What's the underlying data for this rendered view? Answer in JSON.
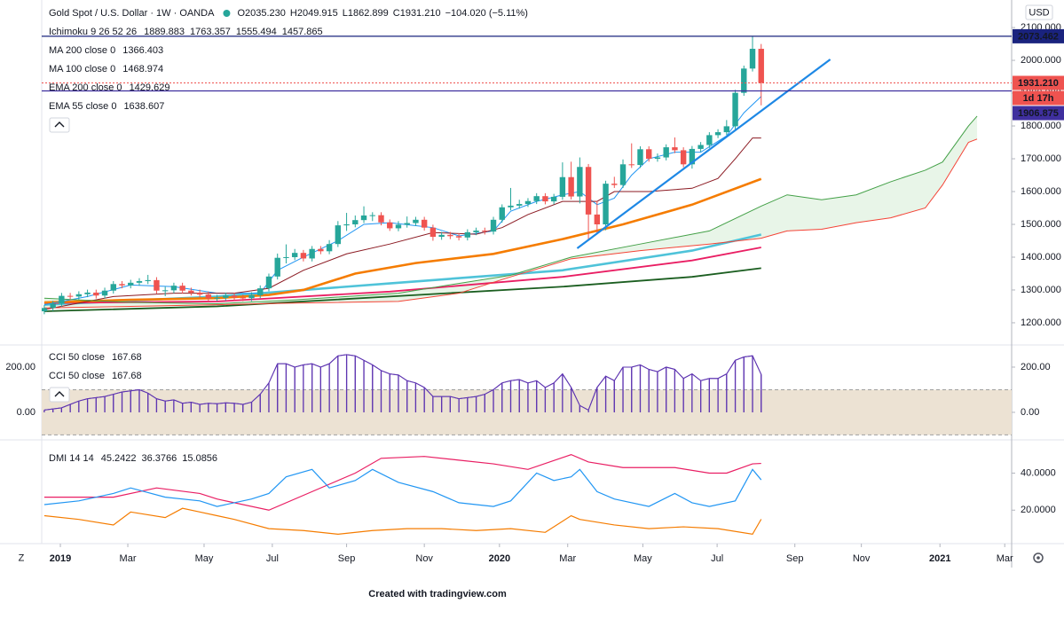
{
  "chart_data": [
    {
      "type": "candlestick",
      "title": "Gold Spot / U.S. Dollar · 1W · OANDA",
      "ohlc_labels": [
        "O",
        "H",
        "L",
        "C"
      ],
      "ohlc_text": [
        "2035.230",
        "2049.915",
        "1862.899",
        "1931.210"
      ],
      "change": "−104.020 (−5.11%)",
      "currency": "USD",
      "up_color": "#26a69a",
      "down_color": "#ef5350",
      "open": [
        1235,
        1245,
        1258,
        1282,
        1280,
        1287,
        1292,
        1283,
        1298,
        1318,
        1314,
        1322,
        1327,
        1330,
        1298,
        1299,
        1313,
        1298,
        1292,
        1286,
        1274,
        1276,
        1283,
        1277,
        1275,
        1284,
        1305,
        1341,
        1398,
        1400,
        1413,
        1396,
        1425,
        1418,
        1440,
        1497,
        1500,
        1513,
        1527,
        1528,
        1506,
        1488,
        1499,
        1504,
        1514,
        1490,
        1462,
        1468,
        1464,
        1460,
        1476,
        1481,
        1478,
        1514,
        1552,
        1557,
        1562,
        1571,
        1586,
        1570,
        1584,
        1644,
        1585,
        1675,
        1530,
        1500,
        1624,
        1620,
        1683,
        1681,
        1729,
        1700,
        1704,
        1735,
        1726,
        1683,
        1730,
        1742,
        1772,
        1781,
        1799,
        1901,
        1975,
        2035.23
      ],
      "high": [
        1254,
        1267,
        1291,
        1291,
        1296,
        1301,
        1301,
        1307,
        1327,
        1327,
        1331,
        1336,
        1346,
        1339,
        1310,
        1322,
        1322,
        1307,
        1301,
        1295,
        1285,
        1292,
        1292,
        1286,
        1293,
        1314,
        1350,
        1411,
        1439,
        1425,
        1422,
        1434,
        1434,
        1452,
        1510,
        1535,
        1527,
        1555,
        1537,
        1537,
        1515,
        1510,
        1524,
        1523,
        1523,
        1499,
        1477,
        1477,
        1473,
        1485,
        1490,
        1490,
        1523,
        1561,
        1611,
        1575,
        1580,
        1595,
        1595,
        1593,
        1689,
        1691,
        1704,
        1684,
        1572,
        1633,
        1645,
        1698,
        1747,
        1738,
        1738,
        1716,
        1744,
        1765,
        1735,
        1739,
        1751,
        1781,
        1790,
        1818,
        1910,
        1984,
        2073.462,
        2049.915
      ],
      "low": [
        1226,
        1236,
        1249,
        1271,
        1271,
        1278,
        1274,
        1274,
        1289,
        1305,
        1305,
        1313,
        1318,
        1289,
        1281,
        1290,
        1289,
        1283,
        1277,
        1266,
        1266,
        1267,
        1268,
        1266,
        1266,
        1275,
        1296,
        1332,
        1381,
        1391,
        1387,
        1387,
        1409,
        1409,
        1431,
        1480,
        1491,
        1504,
        1510,
        1497,
        1480,
        1479,
        1490,
        1495,
        1481,
        1450,
        1453,
        1455,
        1451,
        1451,
        1467,
        1469,
        1469,
        1505,
        1543,
        1548,
        1553,
        1562,
        1561,
        1561,
        1575,
        1576,
        1564,
        1451,
        1471,
        1482,
        1611,
        1611,
        1672,
        1672,
        1691,
        1691,
        1695,
        1717,
        1674,
        1670,
        1721,
        1733,
        1763,
        1772,
        1790,
        1892,
        1966,
        1862.899
      ],
      "close": [
        1245,
        1258,
        1282,
        1280,
        1287,
        1292,
        1283,
        1298,
        1318,
        1314,
        1322,
        1327,
        1330,
        1298,
        1299,
        1313,
        1298,
        1292,
        1286,
        1274,
        1276,
        1283,
        1277,
        1275,
        1284,
        1305,
        1341,
        1398,
        1400,
        1413,
        1396,
        1425,
        1418,
        1440,
        1497,
        1500,
        1513,
        1527,
        1528,
        1506,
        1488,
        1499,
        1504,
        1514,
        1490,
        1462,
        1468,
        1464,
        1460,
        1476,
        1481,
        1478,
        1514,
        1552,
        1557,
        1562,
        1571,
        1586,
        1570,
        1584,
        1644,
        1585,
        1675,
        1530,
        1500,
        1624,
        1620,
        1683,
        1681,
        1729,
        1700,
        1704,
        1735,
        1726,
        1683,
        1730,
        1742,
        1772,
        1781,
        1799,
        1901,
        1975,
        2035.23,
        1931.21
      ],
      "ichimoku": {
        "name": "Ichimoku 9 26 52 26",
        "cloud_color": "rgba(76,175,80,0.13)",
        "lines": [
          {
            "color": "#2196f3",
            "x": [
              0,
              5,
              10,
              15,
              20,
              25,
              27,
              30,
              34,
              37,
              40,
              45,
              48,
              52,
              54,
              57,
              60,
              62,
              64,
              66,
              68,
              70,
              73,
              76,
              79,
              81,
              83
            ],
            "values": [
              1255,
              1280,
              1315,
              1310,
              1290,
              1290,
              1360,
              1400,
              1450,
              1500,
              1505,
              1490,
              1465,
              1480,
              1540,
              1570,
              1590,
              1600,
              1560,
              1580,
              1650,
              1700,
              1720,
              1720,
              1770,
              1840,
              1889.883
            ]
          },
          {
            "color": "#8b1a22",
            "x": [
              0,
              8,
              15,
              22,
              26,
              30,
              35,
              40,
              45,
              50,
              53,
              56,
              60,
              64,
              66,
              70,
              75,
              78,
              80,
              82,
              83
            ],
            "values": [
              1240,
              1280,
              1290,
              1290,
              1305,
              1360,
              1410,
              1440,
              1475,
              1470,
              1490,
              1530,
              1570,
              1570,
              1600,
              1600,
              1610,
              1640,
              1700,
              1763.357,
              1763.357
            ]
          },
          {
            "color": "#43a047",
            "x": [
              0,
              10,
              20,
              29,
              41,
              48,
              54,
              61,
              69,
              77,
              83,
              86,
              90,
              94,
              98,
              102,
              104,
              107,
              108
            ],
            "values": [
              1275,
              1262,
              1258,
              1270,
              1290,
              1320,
              1345,
              1400,
              1440,
              1480,
              1555.494,
              1590,
              1575,
              1590,
              1630,
              1665,
              1690,
              1800,
              1830
            ]
          },
          {
            "color": "#f44336",
            "x": [
              0,
              10,
              20,
              29,
              41,
              48,
              54,
              61,
              69,
              77,
              83,
              86,
              90,
              94,
              98,
              102,
              104,
              107,
              108
            ],
            "values": [
              1245,
              1250,
              1255,
              1260,
              1265,
              1290,
              1340,
              1395,
              1420,
              1440,
              1457.865,
              1480,
              1485,
              1505,
              1520,
              1550,
              1620,
              1750,
              1760
            ]
          }
        ]
      },
      "series": [
        {
          "name": "MA 200 close 0",
          "color": "#1b5e20",
          "x": [
            0,
            20,
            40,
            60,
            75,
            83
          ],
          "values": [
            1235,
            1250,
            1280,
            1310,
            1340,
            1366.403
          ]
        },
        {
          "name": "MA 100 close 0",
          "color": "#4fc3d9",
          "x": [
            0,
            20,
            40,
            60,
            75,
            83
          ],
          "values": [
            1255,
            1280,
            1320,
            1360,
            1420,
            1468.974
          ]
        },
        {
          "name": "EMA 200 close 0",
          "color": "#e91e63",
          "x": [
            0,
            20,
            40,
            60,
            75,
            83
          ],
          "values": [
            1260,
            1265,
            1295,
            1340,
            1390,
            1429.629
          ]
        },
        {
          "name": "EMA 55 close 0",
          "color": "#f57c00",
          "x": [
            0,
            10,
            20,
            26,
            30,
            36,
            43,
            52,
            60,
            67,
            75,
            83
          ],
          "values": [
            1262,
            1270,
            1275,
            1285,
            1300,
            1350,
            1382,
            1410,
            1455,
            1500,
            1560,
            1638.607
          ]
        }
      ],
      "hlines": {
        "values": [
          2073.462,
          1931.21,
          1906.875
        ],
        "value_labels": [
          "2073.462",
          "1931.210",
          "1906.875"
        ],
        "colors": [
          "#1a237e",
          "#ef5350",
          "#3f2f9e"
        ]
      },
      "countdown": "1d 17h",
      "trendline": {
        "color": "#1e88e5",
        "x": [
          61.7,
          91
        ],
        "values": [
          1427,
          2003
        ]
      },
      "xlim": [
        -0.3,
        112
      ],
      "xticks": [
        {
          "value": 1.86,
          "label": "2019"
        },
        {
          "value": 9.67,
          "label": "Mar"
        },
        {
          "value": 18.5,
          "label": "May"
        },
        {
          "value": 26.4,
          "label": "Jul"
        },
        {
          "value": 35,
          "label": "Sep"
        },
        {
          "value": 44,
          "label": "Nov"
        },
        {
          "value": 52.7,
          "label": "2020"
        },
        {
          "value": 60.6,
          "label": "Mar"
        },
        {
          "value": 69.3,
          "label": "May"
        },
        {
          "value": 77.9,
          "label": "Jul"
        },
        {
          "value": 86.9,
          "label": "Sep"
        },
        {
          "value": 94.6,
          "label": "Nov"
        },
        {
          "value": 103.7,
          "label": "2021"
        },
        {
          "value": 111.2,
          "label": "Mar"
        }
      ],
      "ylim": [
        1135,
        2184
      ],
      "yticks": [
        {
          "value": 1200,
          "label": "1200.000"
        },
        {
          "value": 1300,
          "label": "1300.000"
        },
        {
          "value": 1400,
          "label": "1400.000"
        },
        {
          "value": 1500,
          "label": "1500.000"
        },
        {
          "value": 1600,
          "label": "1600.000"
        },
        {
          "value": 1700,
          "label": "1700.000"
        },
        {
          "value": 1800,
          "label": "1800.000"
        },
        {
          "value": 1900,
          "label": "1900.000"
        },
        {
          "value": 2000,
          "label": "2000.000"
        },
        {
          "value": 2100,
          "label": "2100.000"
        }
      ]
    },
    {
      "type": "bar",
      "series": [
        {
          "name": "CCI 50 close",
          "color": "#5e35b1",
          "values": [
            10,
            15,
            20,
            35,
            50,
            60,
            65,
            70,
            80,
            90,
            95,
            100,
            85,
            60,
            50,
            55,
            40,
            45,
            35,
            40,
            38,
            42,
            40,
            35,
            45,
            80,
            130,
            215,
            215,
            200,
            210,
            215,
            200,
            215,
            250,
            255,
            250,
            230,
            210,
            185,
            170,
            165,
            140,
            130,
            110,
            70,
            70,
            70,
            60,
            65,
            70,
            80,
            100,
            130,
            140,
            145,
            130,
            140,
            110,
            130,
            170,
            110,
            30,
            10,
            110,
            160,
            140,
            200,
            200,
            210,
            190,
            180,
            200,
            190,
            150,
            170,
            140,
            150,
            150,
            170,
            230,
            245,
            250,
            167.68
          ]
        },
        {
          "name": "CCI 50 close",
          "color": "#5e35b1",
          "values": [
            10,
            15,
            20,
            35,
            50,
            60,
            65,
            70,
            80,
            90,
            95,
            100,
            85,
            60,
            50,
            55,
            40,
            45,
            35,
            40,
            38,
            42,
            40,
            35,
            45,
            80,
            130,
            215,
            215,
            200,
            210,
            215,
            200,
            215,
            250,
            255,
            250,
            230,
            210,
            185,
            170,
            165,
            140,
            130,
            110,
            70,
            70,
            70,
            60,
            65,
            70,
            80,
            100,
            130,
            140,
            145,
            130,
            140,
            110,
            130,
            170,
            110,
            30,
            10,
            110,
            160,
            140,
            200,
            200,
            210,
            190,
            180,
            200,
            190,
            150,
            170,
            140,
            150,
            150,
            170,
            230,
            245,
            250,
            167.68
          ]
        }
      ],
      "band": [
        -100,
        100
      ],
      "band_color": "#ece2d3",
      "ylim": [
        -114,
        294
      ],
      "yticks": [
        {
          "value": 0,
          "label": "0.00"
        },
        {
          "value": 200,
          "label": "200.00"
        }
      ]
    },
    {
      "type": "line",
      "title": "DMI 14 14",
      "series": [
        {
          "color": "#e91e63",
          "x": [
            0,
            8,
            13,
            18,
            20,
            26,
            31,
            36,
            39,
            44,
            48,
            52,
            56,
            61,
            63,
            67,
            73,
            77,
            79,
            82,
            83
          ],
          "values": [
            27,
            27,
            32,
            29,
            26,
            20,
            30,
            40,
            48,
            49,
            47,
            45,
            42,
            50,
            46,
            43,
            43,
            40,
            40,
            45,
            45.2422
          ]
        },
        {
          "color": "#2196f3",
          "x": [
            0,
            4,
            8,
            10,
            14,
            18,
            20,
            24,
            26,
            28,
            31,
            33,
            36,
            38,
            41,
            45,
            48,
            52,
            54,
            57,
            59,
            61,
            62,
            64,
            66,
            70,
            73,
            75,
            77,
            80,
            82,
            83
          ],
          "values": [
            23,
            25,
            29,
            32,
            27,
            25,
            22,
            26,
            29,
            38,
            42,
            32,
            36,
            42,
            35,
            30,
            24,
            22,
            25,
            40,
            36,
            38,
            42,
            30,
            26,
            22,
            29,
            24,
            22,
            25,
            42,
            36.3766
          ]
        },
        {
          "color": "#f57c00",
          "x": [
            0,
            4,
            8,
            10,
            14,
            16,
            18,
            20,
            22,
            26,
            30,
            34,
            38,
            42,
            46,
            50,
            54,
            58,
            61,
            62,
            66,
            70,
            74,
            78,
            82,
            83
          ],
          "values": [
            17,
            15,
            12,
            19,
            16,
            21,
            19,
            17,
            15,
            10,
            9,
            7,
            9,
            10,
            10,
            9,
            10,
            8,
            17,
            15,
            12,
            10,
            11,
            10,
            7,
            15.0856
          ]
        }
      ],
      "ylim": [
        2.4,
        57
      ],
      "yticks": [
        {
          "value": 20,
          "label": "20.0000"
        },
        {
          "value": 40,
          "label": "40.0000"
        }
      ]
    }
  ],
  "zoom_button": "Z",
  "footer": "Created with tradingview.com"
}
